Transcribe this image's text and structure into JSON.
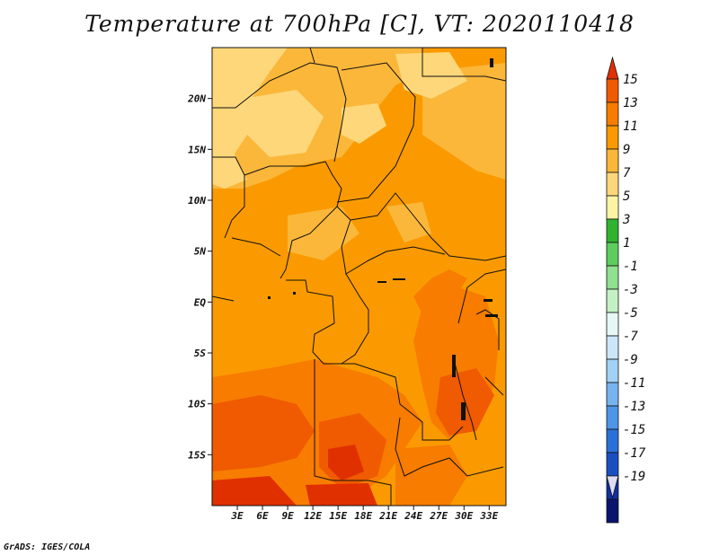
{
  "title": "Temperature at 700hPa [C], VT: 2020110418",
  "credit": "GrADS: IGES/COLA",
  "map": {
    "lon_range": [
      0,
      35
    ],
    "lat_range": [
      -20,
      25
    ],
    "lon_ticks": [
      {
        "value": 3,
        "label": "3E"
      },
      {
        "value": 6,
        "label": "6E"
      },
      {
        "value": 9,
        "label": "9E"
      },
      {
        "value": 12,
        "label": "12E"
      },
      {
        "value": 15,
        "label": "15E"
      },
      {
        "value": 18,
        "label": "18E"
      },
      {
        "value": 21,
        "label": "21E"
      },
      {
        "value": 24,
        "label": "24E"
      },
      {
        "value": 27,
        "label": "27E"
      },
      {
        "value": 30,
        "label": "30E"
      },
      {
        "value": 33,
        "label": "33E"
      }
    ],
    "lat_ticks": [
      {
        "value": 20,
        "label": "20N"
      },
      {
        "value": 15,
        "label": "15N"
      },
      {
        "value": 10,
        "label": "10N"
      },
      {
        "value": 5,
        "label": "5N"
      },
      {
        "value": 0,
        "label": "EQ"
      },
      {
        "value": -5,
        "label": "5S"
      },
      {
        "value": -10,
        "label": "10S"
      },
      {
        "value": -15,
        "label": "15S"
      }
    ]
  },
  "colorbar": {
    "labels": [
      "15",
      "13",
      "11",
      "9",
      "7",
      "5",
      "3",
      "1",
      "-1",
      "-3",
      "-5",
      "-7",
      "-9",
      "-11",
      "-13",
      "-15",
      "-17",
      "-19"
    ],
    "colors": [
      "#e03000",
      "#f05a00",
      "#f77c00",
      "#fa9a00",
      "#fbb73a",
      "#fdd77a",
      "#fff4a6",
      "#31b331",
      "#5ecd5e",
      "#8fe08f",
      "#c4f1c4",
      "#e6f8f6",
      "#cbe6fa",
      "#a3d1f6",
      "#77b4ef",
      "#4f95e7",
      "#2b70d8",
      "#1a4fc2",
      "#10309e",
      "#0a146e",
      "#dcdcf5"
    ]
  }
}
